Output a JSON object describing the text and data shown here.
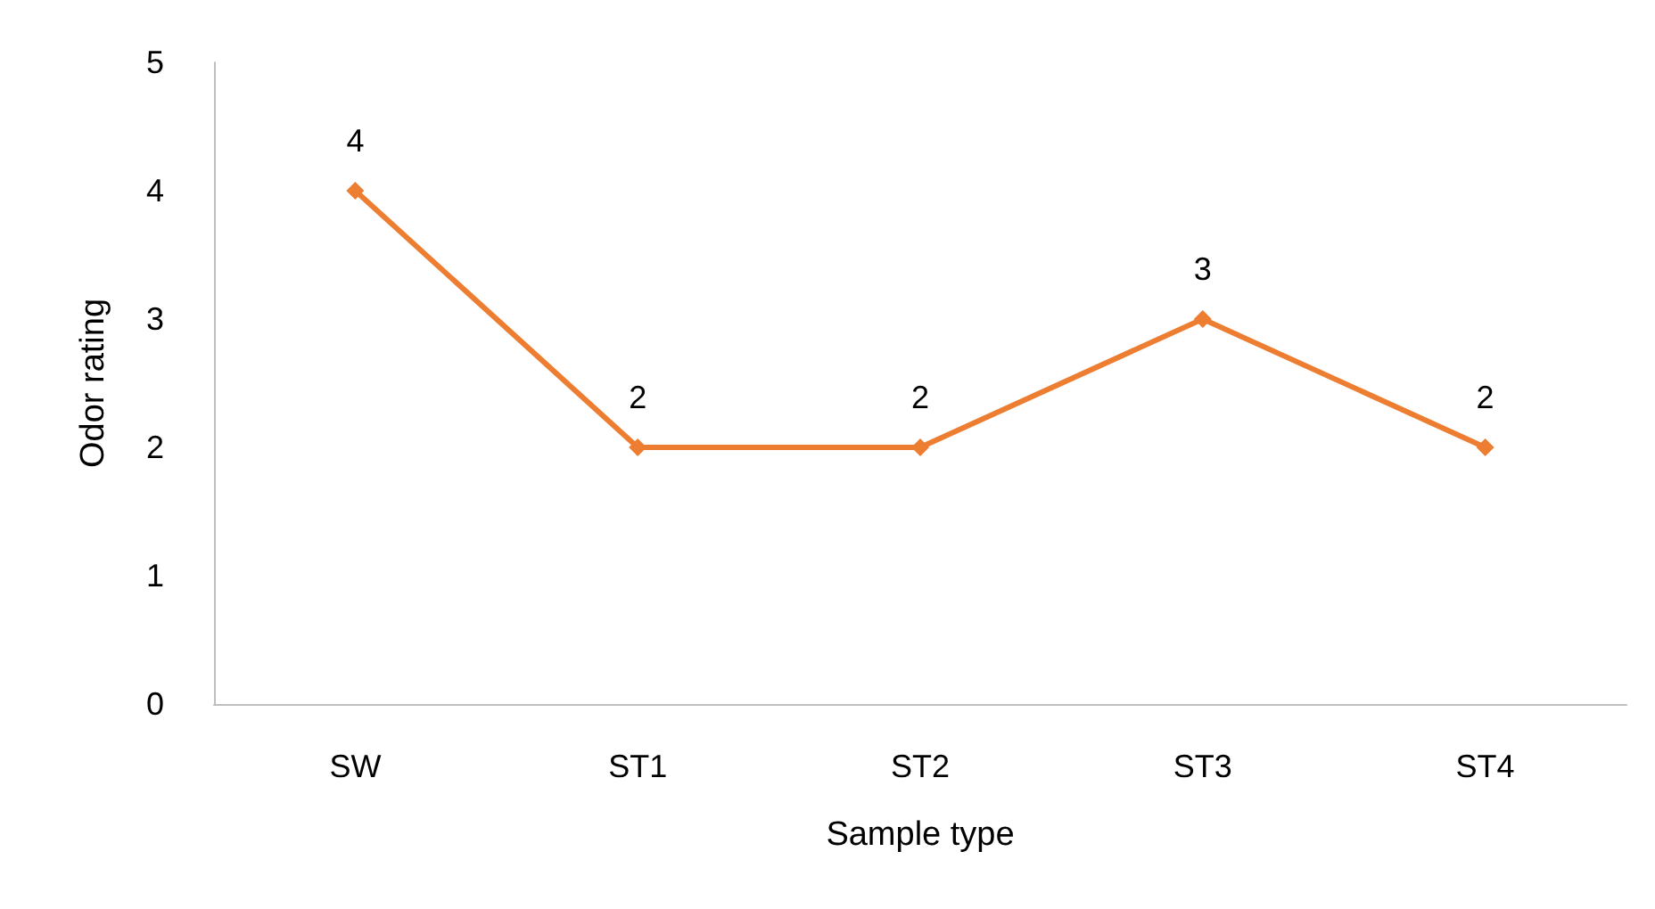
{
  "chart_data": {
    "type": "line",
    "xlabel": "Sample type",
    "ylabel": "Odor rating",
    "categories": [
      "SW",
      "ST1",
      "ST2",
      "ST3",
      "ST4"
    ],
    "series": [
      {
        "color": "#ed7d31",
        "values": [
          4,
          2,
          2,
          3,
          2
        ]
      }
    ],
    "ylim": [
      0,
      5
    ],
    "yticks": [
      0,
      1,
      2,
      3,
      4,
      5
    ],
    "grid": false,
    "marker": "diamond",
    "line_style": "solid",
    "data_labels": true
  }
}
